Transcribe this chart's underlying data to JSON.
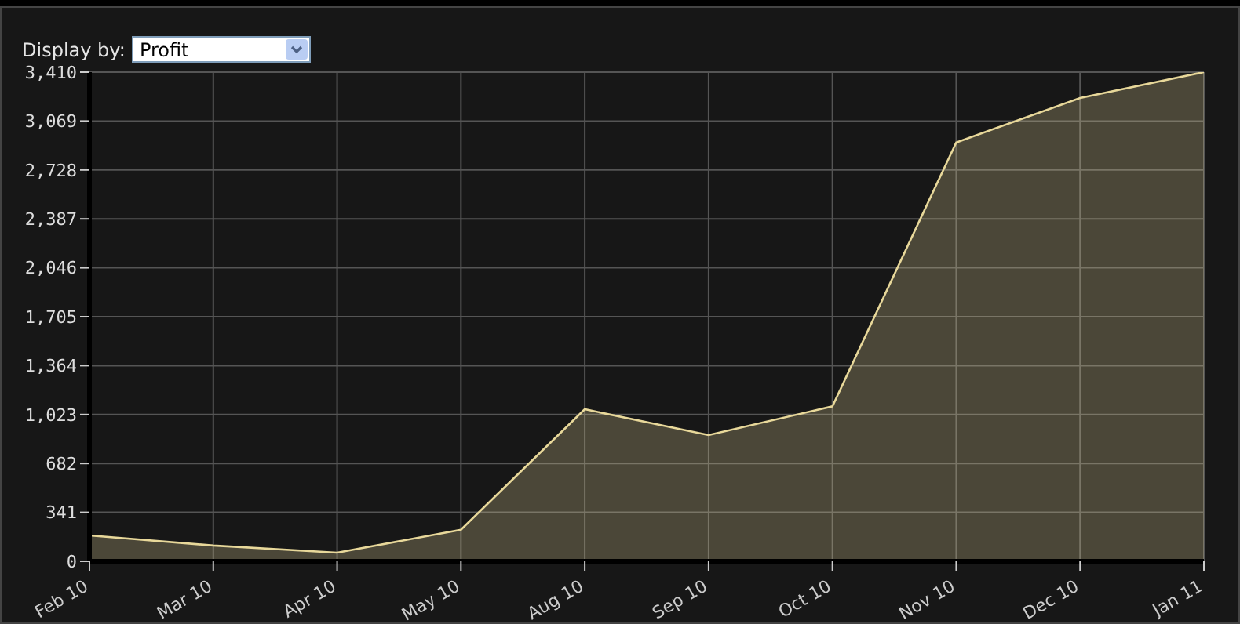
{
  "chart_data": {
    "type": "area",
    "categories": [
      "Feb 10",
      "Mar 10",
      "Apr 10",
      "May 10",
      "Aug 10",
      "Sep 10",
      "Oct 10",
      "Nov 10",
      "Dec 10",
      "Jan 11"
    ],
    "series": [
      {
        "color": "#e8d89a",
        "values": [
          180,
          110,
          60,
          220,
          1060,
          880,
          1080,
          2920,
          3230,
          3410
        ]
      }
    ],
    "ylim": [
      0,
      3410
    ],
    "yticks": [
      {
        "value": 0,
        "label": "0"
      },
      {
        "value": 341,
        "label": "341"
      },
      {
        "value": 682,
        "label": "682"
      },
      {
        "value": 1023,
        "label": "1,023"
      },
      {
        "value": 1364,
        "label": "1,364"
      },
      {
        "value": 1705,
        "label": "1,705"
      },
      {
        "value": 2046,
        "label": "2,046"
      },
      {
        "value": 2387,
        "label": "2,387"
      },
      {
        "value": 2728,
        "label": "2,728"
      },
      {
        "value": 3069,
        "label": "3,069"
      },
      {
        "value": 3410,
        "label": "3,410"
      }
    ],
    "grid": true,
    "marker": "none",
    "annotations": [
      "Display by:",
      "Profit"
    ]
  }
}
